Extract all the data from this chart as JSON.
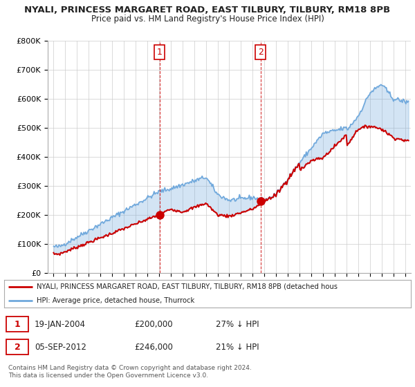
{
  "title": "NYALI, PRINCESS MARGARET ROAD, EAST TILBURY, TILBURY, RM18 8PB",
  "subtitle": "Price paid vs. HM Land Registry's House Price Index (HPI)",
  "ylabel_ticks": [
    "£0",
    "£100K",
    "£200K",
    "£300K",
    "£400K",
    "£500K",
    "£600K",
    "£700K",
    "£800K"
  ],
  "ytick_values": [
    0,
    100000,
    200000,
    300000,
    400000,
    500000,
    600000,
    700000,
    800000
  ],
  "ylim": [
    0,
    800000
  ],
  "xlim_start": 1994.5,
  "xlim_end": 2025.5,
  "hpi_color": "#6fa8dc",
  "price_color": "#cc0000",
  "sale1_x": 2004.05,
  "sale1_y": 200000,
  "sale1_label": "1",
  "sale2_x": 2012.67,
  "sale2_y": 246000,
  "sale2_label": "2",
  "legend_line1": "NYALI, PRINCESS MARGARET ROAD, EAST TILBURY, TILBURY, RM18 8PB (detached hous",
  "legend_line2": "HPI: Average price, detached house, Thurrock",
  "table_row1": [
    "1",
    "19-JAN-2004",
    "£200,000",
    "27% ↓ HPI"
  ],
  "table_row2": [
    "2",
    "05-SEP-2012",
    "£246,000",
    "21% ↓ HPI"
  ],
  "footnote": "Contains HM Land Registry data © Crown copyright and database right 2024.\nThis data is licensed under the Open Government Licence v3.0.",
  "background_color": "#ffffff",
  "grid_color": "#cccccc"
}
